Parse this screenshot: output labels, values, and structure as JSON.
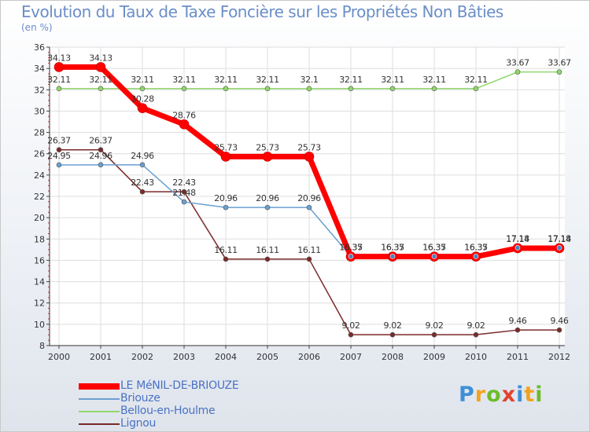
{
  "chart_data": {
    "type": "line",
    "title": "Evolution du Taux de Taxe Foncière sur les Propriétés Non Bâties",
    "subtitle": "(en %)",
    "x": [
      "2000",
      "2001",
      "2002",
      "2003",
      "2004",
      "2005",
      "2006",
      "2007",
      "2008",
      "2009",
      "2010",
      "2011",
      "2012"
    ],
    "ylim": [
      8,
      36
    ],
    "yticks": [
      8,
      10,
      12,
      14,
      16,
      18,
      20,
      22,
      24,
      26,
      28,
      30,
      32,
      34,
      36
    ],
    "grid": true,
    "series": [
      {
        "name": "LE MéNIL-DE-BRIOUZE",
        "color": "#ff0000",
        "values": [
          34.13,
          34.13,
          30.28,
          28.76,
          25.73,
          25.73,
          25.73,
          16.35,
          16.35,
          16.35,
          16.35,
          17.14,
          17.14
        ],
        "labels": [
          "34.13",
          "34.13",
          "30.28",
          "28.76",
          "25.73",
          "25.73",
          "25.73",
          "16.35",
          "16.35",
          "16.35",
          "16.35",
          "17.14",
          "17.14"
        ]
      },
      {
        "name": "Briouze",
        "color": "#6a9fd0",
        "values": [
          24.95,
          24.96,
          24.96,
          21.48,
          20.96,
          20.96,
          20.96,
          16.37,
          16.37,
          16.37,
          16.37,
          17.18,
          17.18
        ],
        "labels": [
          "24.95",
          "24.96",
          "24.96",
          "21.48",
          "20.96",
          "20.96",
          "20.96",
          "16.37",
          "16.37",
          "16.37",
          "16.37",
          "17.18",
          "17.18"
        ]
      },
      {
        "name": "Bellou-en-Houlme",
        "color": "#8fd86a",
        "values": [
          32.11,
          32.11,
          32.11,
          32.11,
          32.11,
          32.11,
          32.1,
          32.11,
          32.11,
          32.11,
          32.11,
          33.67,
          33.67
        ],
        "labels": [
          "32.11",
          "32.11",
          "32.11",
          "32.11",
          "32.11",
          "32.11",
          "32.1",
          "32.11",
          "32.11",
          "32.11",
          "32.11",
          "33.67",
          "33.67"
        ]
      },
      {
        "name": "Lignou",
        "color": "#7a2a2a",
        "values": [
          26.37,
          26.37,
          22.43,
          22.43,
          16.11,
          16.11,
          16.11,
          9.02,
          9.02,
          9.02,
          9.02,
          9.46,
          9.46
        ],
        "labels": [
          "26.37",
          "26.37",
          "22.43",
          "22.43",
          "16.11",
          "16.11",
          "16.11",
          "9.02",
          "9.02",
          "9.02",
          "9.02",
          "9.46",
          "9.46"
        ]
      }
    ],
    "legend_position": "bottom-left"
  },
  "logo": {
    "text": "Proxiti",
    "colors": [
      "#3e8fd8",
      "#f0a320",
      "#6cbc2a",
      "#e0442a"
    ]
  }
}
